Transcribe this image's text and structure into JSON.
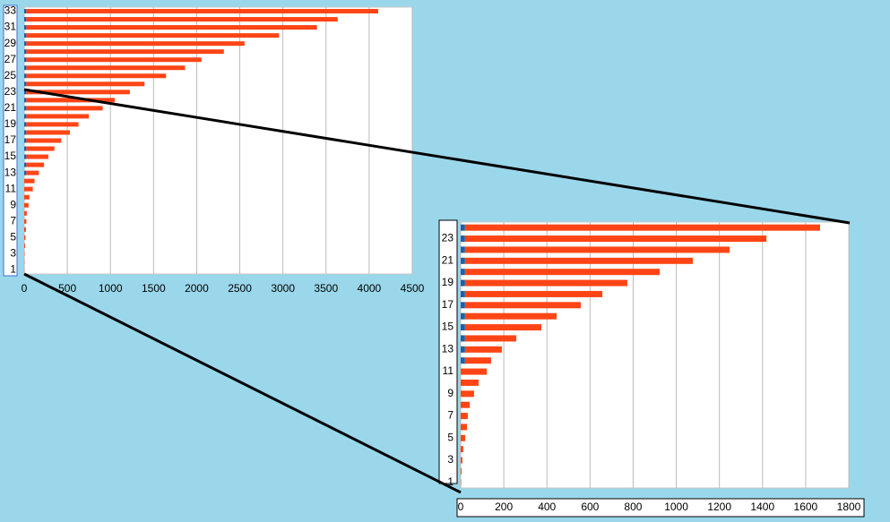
{
  "chart_data": [
    {
      "type": "bar",
      "orientation": "horizontal",
      "stacked": true,
      "grid": true,
      "categories": [
        "1",
        null,
        "3",
        null,
        "5",
        null,
        "7",
        null,
        "9",
        null,
        "11",
        null,
        "13",
        null,
        "15",
        null,
        "17",
        null,
        "19",
        null,
        "21",
        null,
        "23",
        null,
        "25",
        null,
        "27",
        null,
        "29",
        null,
        "31",
        null,
        "33"
      ],
      "series": [
        {
          "color": "#1f5fa8",
          "values": [
            0,
            0,
            0,
            0,
            0,
            0,
            0,
            0,
            0,
            0,
            0,
            0,
            25,
            25,
            25,
            25,
            25,
            25,
            25,
            25,
            25,
            25,
            25,
            25,
            25,
            25,
            25,
            25,
            25,
            25,
            25,
            25,
            25
          ]
        },
        {
          "color": "#ff4516",
          "values": [
            2,
            3,
            5,
            10,
            15,
            20,
            25,
            30,
            50,
            60,
            100,
            120,
            145,
            205,
            255,
            325,
            405,
            505,
            605,
            725,
            885,
            1025,
            1200,
            1370,
            1620,
            1840,
            2030,
            2290,
            2530,
            2930,
            3370,
            3610,
            4080
          ]
        }
      ],
      "xlim": [
        0,
        4500
      ],
      "xticks": [
        0,
        500,
        1000,
        1500,
        2000,
        2500,
        3000,
        3500,
        4000,
        4500
      ]
    },
    {
      "type": "bar",
      "orientation": "horizontal",
      "stacked": true,
      "grid": true,
      "categories": [
        "1",
        null,
        "3",
        null,
        "5",
        null,
        "7",
        null,
        "9",
        null,
        "11",
        null,
        "13",
        null,
        "15",
        null,
        "17",
        null,
        "19",
        null,
        "21",
        null,
        "23",
        null
      ],
      "series": [
        {
          "color": "#1f5fa8",
          "values": [
            0,
            0,
            0,
            0,
            0,
            0,
            0,
            0,
            0,
            0,
            0,
            20,
            20,
            20,
            20,
            20,
            20,
            20,
            20,
            20,
            20,
            20,
            20,
            20
          ]
        },
        {
          "color": "#ff4516",
          "values": [
            2,
            4,
            8,
            12,
            21,
            29,
            33,
            42,
            62,
            83,
            121,
            121,
            171,
            238,
            354,
            425,
            537,
            637,
            753,
            903,
            1057,
            1227,
            1398,
            1647
          ]
        }
      ],
      "xlim": [
        0,
        1800
      ],
      "xticks": [
        0,
        200,
        400,
        600,
        800,
        1000,
        1200,
        1400,
        1600,
        1800
      ]
    }
  ]
}
